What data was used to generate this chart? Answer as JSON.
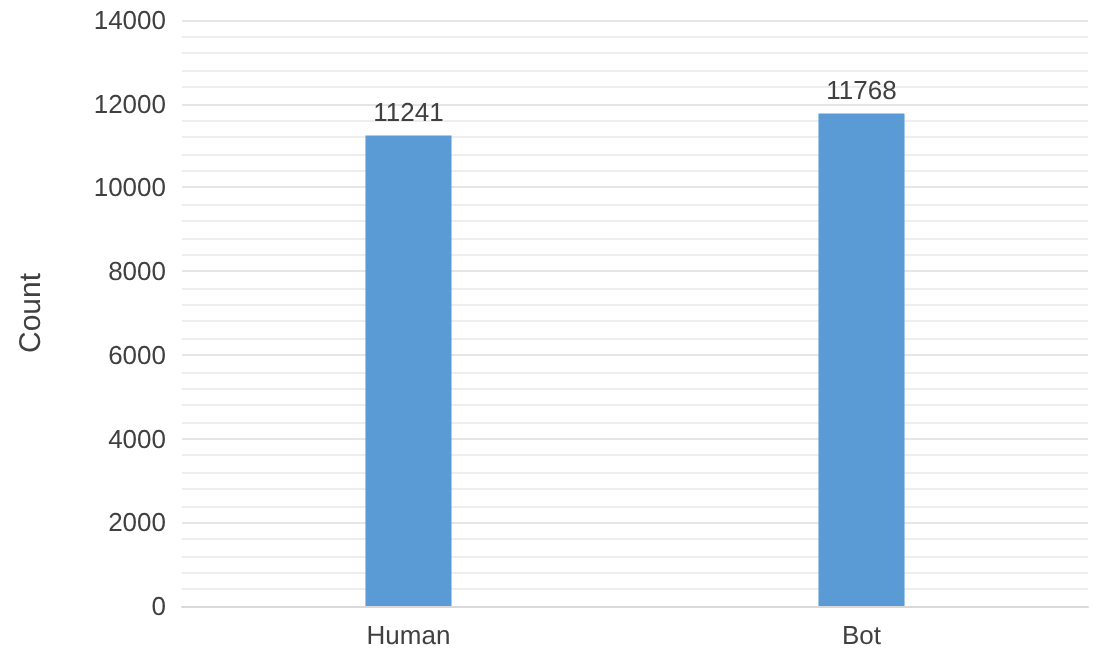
{
  "chart_data": {
    "type": "bar",
    "ylabel": "Count",
    "categories": [
      "Human",
      "Bot"
    ],
    "values": [
      11241,
      11768
    ],
    "color": "#5b9bd5",
    "ylim": [
      0,
      14000
    ],
    "yticks": [
      0,
      2000,
      4000,
      6000,
      8000,
      10000,
      12000,
      14000
    ],
    "grid": true,
    "data_labels": true
  }
}
